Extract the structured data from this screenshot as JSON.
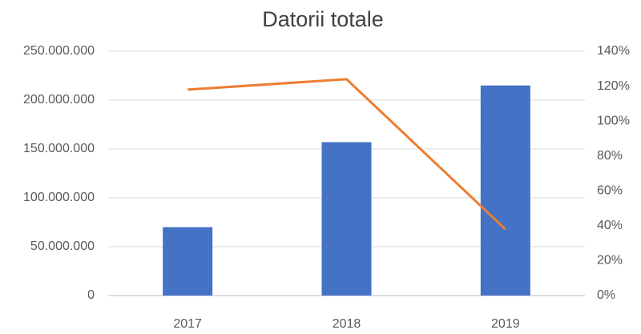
{
  "chart_data": {
    "type": "bar",
    "title": "Datorii totale",
    "categories": [
      "2017",
      "2018",
      "2019"
    ],
    "series": [
      {
        "color": "#4472c4",
        "values": [
          70000000,
          157000000,
          215000000
        ]
      },
      {
        "type": "line",
        "axis": "y2",
        "color": "#ed7d31",
        "values": [
          118,
          124,
          38
        ]
      }
    ],
    "ylim": [
      0,
      250000000
    ],
    "yticks": [
      0,
      {
        "value": 50000000,
        "label": "50.000.000"
      },
      {
        "value": 100000000,
        "label": "100.000.000"
      },
      {
        "value": 150000000,
        "label": "150.000.000"
      },
      {
        "value": 200000000,
        "label": "200.000.000"
      },
      {
        "value": 250000000,
        "label": "250.000.000"
      }
    ],
    "y2lim": [
      0,
      140
    ],
    "y2ticks": [
      {
        "value": 0,
        "label": "0%"
      },
      {
        "value": 20,
        "label": "20%"
      },
      {
        "value": 40,
        "label": "40%"
      },
      {
        "value": 60,
        "label": "60%"
      },
      {
        "value": 80,
        "label": "80%"
      },
      {
        "value": 100,
        "label": "100%"
      },
      {
        "value": 120,
        "label": "120%"
      },
      {
        "value": 140,
        "label": "140%"
      }
    ],
    "grid": true
  }
}
